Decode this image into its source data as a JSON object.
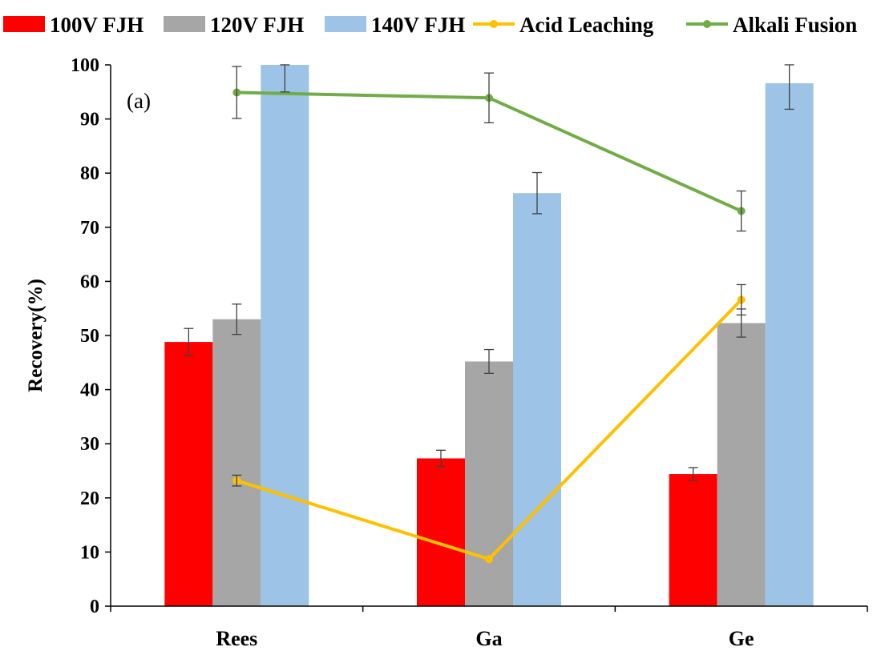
{
  "chart_data": {
    "type": "bar",
    "panel_label": "(a)",
    "categories": [
      "Rees",
      "Ga",
      "Ge"
    ],
    "ylabel": "Recovery(%)",
    "xlabel": "",
    "ylim": [
      0,
      100
    ],
    "yticks": [
      0,
      10,
      20,
      30,
      40,
      50,
      60,
      70,
      80,
      90,
      100
    ],
    "grid": false,
    "legend_position": "top",
    "bar_series": [
      {
        "name": "100V FJH",
        "color": "#ff0000",
        "values": [
          48.8,
          27.3,
          24.4
        ],
        "errors": [
          2.5,
          1.5,
          1.2
        ]
      },
      {
        "name": "120V FJH",
        "color": "#a6a6a6",
        "values": [
          53.0,
          45.2,
          52.3
        ],
        "errors": [
          2.8,
          2.2,
          2.6
        ]
      },
      {
        "name": "140V FJH",
        "color": "#9dc3e6",
        "values": [
          100,
          76.3,
          96.6
        ],
        "errors": [
          5.0,
          3.8,
          4.8
        ]
      }
    ],
    "line_series": [
      {
        "name": "Acid Leaching",
        "color": "#ffc000",
        "values": [
          23.2,
          8.7,
          56.6
        ],
        "errors": [
          1.0,
          0,
          2.8
        ]
      },
      {
        "name": "Alkali Fusion",
        "color": "#70ad47",
        "values": [
          94.9,
          93.9,
          73.0
        ],
        "errors": [
          4.8,
          4.6,
          3.7
        ]
      }
    ]
  }
}
